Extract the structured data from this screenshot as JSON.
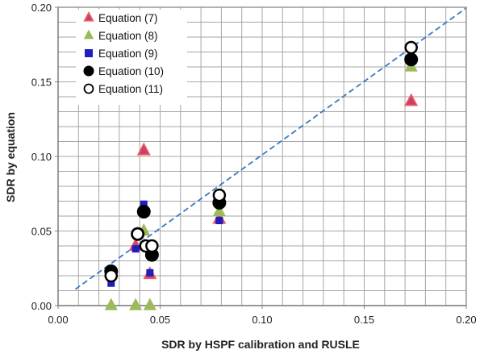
{
  "chart_data": {
    "type": "scatter",
    "xlabel": "SDR by HSPF calibration and RUSLE",
    "ylabel": "SDR by equation",
    "xlim": [
      0,
      0.2
    ],
    "ylim": [
      0,
      0.2
    ],
    "xticks": [
      "0.00",
      "0.05",
      "0.10",
      "0.15",
      "0.20"
    ],
    "yticks": [
      "0.00",
      "0.05",
      "0.10",
      "0.15",
      "0.20"
    ],
    "grid": true,
    "minor_grid_step": 0.01,
    "legend_position": "top-left",
    "colors": {
      "eq7_fill": "#c8406e",
      "eq7_edge": "#f06060",
      "eq8_fill": "#9bbb59",
      "eq9_fill": "#1f1fbf",
      "eq10_fill": "#000000",
      "eq11_fill": "#ffffff",
      "trend": "#3a78c4",
      "grid": "#a6a6a6",
      "axis": "#7f7f7f"
    },
    "trendline": {
      "style": "dashed",
      "points": [
        [
          0.0085,
          0.011
        ],
        [
          0.2,
          0.1995
        ]
      ]
    },
    "series": [
      {
        "name": "Equation (7)",
        "marker": "triangle",
        "points": [
          [
            0.026,
            0.022
          ],
          [
            0.038,
            0.04
          ],
          [
            0.042,
            0.104
          ],
          [
            0.045,
            0.021
          ],
          [
            0.079,
            0.058
          ],
          [
            0.173,
            0.137
          ]
        ]
      },
      {
        "name": "Equation (8)",
        "marker": "triangle",
        "points": [
          [
            0.026,
            0.0
          ],
          [
            0.038,
            0.0
          ],
          [
            0.045,
            0.0
          ],
          [
            0.042,
            0.05
          ],
          [
            0.079,
            0.063
          ],
          [
            0.173,
            0.16
          ]
        ]
      },
      {
        "name": "Equation (9)",
        "marker": "square",
        "points": [
          [
            0.026,
            0.015
          ],
          [
            0.038,
            0.038
          ],
          [
            0.042,
            0.068
          ],
          [
            0.045,
            0.022
          ],
          [
            0.079,
            0.057
          ],
          [
            0.173,
            0.172
          ]
        ]
      },
      {
        "name": "Equation (10)",
        "marker": "circle-filled",
        "points": [
          [
            0.026,
            0.023
          ],
          [
            0.039,
            0.048
          ],
          [
            0.042,
            0.063
          ],
          [
            0.046,
            0.034
          ],
          [
            0.079,
            0.069
          ],
          [
            0.173,
            0.165
          ]
        ]
      },
      {
        "name": "Equation (11)",
        "marker": "circle-open",
        "points": [
          [
            0.026,
            0.02
          ],
          [
            0.039,
            0.048
          ],
          [
            0.043,
            0.04
          ],
          [
            0.046,
            0.04
          ],
          [
            0.079,
            0.074
          ],
          [
            0.173,
            0.173
          ]
        ]
      }
    ]
  }
}
